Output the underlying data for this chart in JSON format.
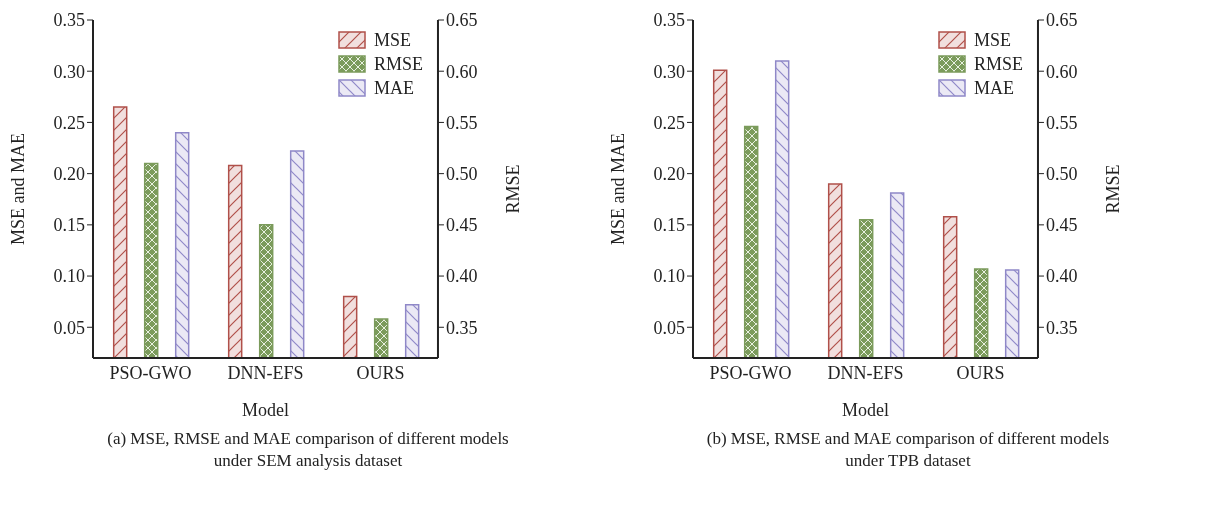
{
  "chart_data": [
    {
      "type": "bar",
      "xlabel": "Model",
      "ylabel": "MSE and MAE",
      "y2label": "RMSE",
      "categories": [
        "PSO-GWO",
        "DNN-EFS",
        "OURS"
      ],
      "series": [
        {
          "name": "MSE",
          "color": "#b0504a",
          "values": [
            0.265,
            0.208,
            0.08
          ]
        },
        {
          "name": "RMSE",
          "color": "#7b9b5b",
          "values": [
            0.51,
            0.45,
            0.358
          ],
          "axis": "y2"
        },
        {
          "name": "MAE",
          "color": "#8f88c8",
          "values": [
            0.24,
            0.222,
            0.072
          ]
        }
      ],
      "ylim": [
        0.02,
        0.35
      ],
      "yticks": [
        {
          "value": 0.05,
          "label": "0.05"
        },
        {
          "value": 0.1,
          "label": "0.10"
        },
        {
          "value": 0.15,
          "label": "0.15"
        },
        {
          "value": 0.2,
          "label": "0.20"
        },
        {
          "value": 0.25,
          "label": "0.25"
        },
        {
          "value": 0.3,
          "label": "0.30"
        },
        {
          "value": 0.35,
          "label": "0.35"
        }
      ],
      "y2lim": [
        0.32,
        0.65
      ],
      "y2ticks": [
        {
          "value": 0.35,
          "label": "0.35"
        },
        {
          "value": 0.4,
          "label": "0.40"
        },
        {
          "value": 0.45,
          "label": "0.45"
        },
        {
          "value": 0.5,
          "label": "0.50"
        },
        {
          "value": 0.55,
          "label": "0.55"
        },
        {
          "value": 0.6,
          "label": "0.60"
        },
        {
          "value": 0.65,
          "label": "0.65"
        }
      ],
      "legend": "top right",
      "grid": false,
      "annotations": [
        "(a) MSE, RMSE and MAE comparison of different models under SEM analysis dataset"
      ]
    },
    {
      "type": "bar",
      "xlabel": "Model",
      "ylabel": "MSE and MAE",
      "y2label": "RMSE",
      "categories": [
        "PSO-GWO",
        "DNN-EFS",
        "OURS"
      ],
      "series": [
        {
          "name": "MSE",
          "color": "#b0504a",
          "values": [
            0.301,
            0.19,
            0.158
          ]
        },
        {
          "name": "RMSE",
          "color": "#7b9b5b",
          "values": [
            0.546,
            0.455,
            0.407
          ],
          "axis": "y2"
        },
        {
          "name": "MAE",
          "color": "#8f88c8",
          "values": [
            0.31,
            0.181,
            0.106
          ]
        }
      ],
      "ylim": [
        0.02,
        0.35
      ],
      "yticks": [
        {
          "value": 0.05,
          "label": "0.05"
        },
        {
          "value": 0.1,
          "label": "0.10"
        },
        {
          "value": 0.15,
          "label": "0.15"
        },
        {
          "value": 0.2,
          "label": "0.20"
        },
        {
          "value": 0.25,
          "label": "0.25"
        },
        {
          "value": 0.3,
          "label": "0.30"
        },
        {
          "value": 0.35,
          "label": "0.35"
        }
      ],
      "y2lim": [
        0.32,
        0.65
      ],
      "y2ticks": [
        {
          "value": 0.35,
          "label": "0.35"
        },
        {
          "value": 0.4,
          "label": "0.40"
        },
        {
          "value": 0.45,
          "label": "0.45"
        },
        {
          "value": 0.5,
          "label": "0.50"
        },
        {
          "value": 0.55,
          "label": "0.55"
        },
        {
          "value": 0.6,
          "label": "0.60"
        },
        {
          "value": 0.65,
          "label": "0.65"
        }
      ],
      "legend": "top right",
      "grid": false,
      "annotations": [
        "(b) MSE, RMSE and MAE comparison of different models under TPB dataset"
      ]
    }
  ]
}
